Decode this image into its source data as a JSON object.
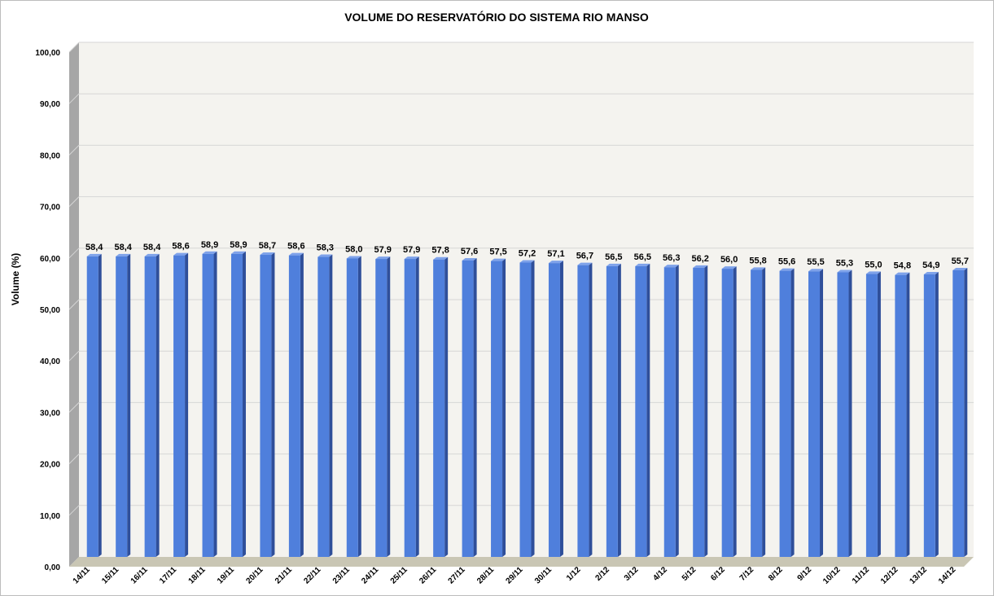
{
  "chart_data": {
    "type": "bar",
    "title": "VOLUME DO RESERVATÓRIO DO SISTEMA RIO MANSO",
    "xlabel": "",
    "ylabel": "Volume (%)",
    "ylim": [
      0,
      100
    ],
    "yticks": [
      "0,00",
      "10,00",
      "20,00",
      "30,00",
      "40,00",
      "50,00",
      "60,00",
      "70,00",
      "80,00",
      "90,00",
      "100,00"
    ],
    "categories": [
      "14/11",
      "15/11",
      "16/11",
      "17/11",
      "18/11",
      "19/11",
      "20/11",
      "21/11",
      "22/11",
      "23/11",
      "24/11",
      "25/11",
      "26/11",
      "27/11",
      "28/11",
      "29/11",
      "30/11",
      "1/12",
      "2/12",
      "3/12",
      "4/12",
      "5/12",
      "6/12",
      "7/12",
      "8/12",
      "9/12",
      "10/12",
      "11/12",
      "12/12",
      "13/12",
      "14/12"
    ],
    "values": [
      58.4,
      58.4,
      58.4,
      58.6,
      58.9,
      58.9,
      58.7,
      58.6,
      58.3,
      58.0,
      57.9,
      57.9,
      57.8,
      57.6,
      57.5,
      57.2,
      57.1,
      56.7,
      56.5,
      56.5,
      56.3,
      56.2,
      56.0,
      55.8,
      55.6,
      55.5,
      55.3,
      55.0,
      54.8,
      54.9,
      55.7
    ],
    "value_labels": [
      "58,4",
      "58,4",
      "58,4",
      "58,6",
      "58,9",
      "58,9",
      "58,7",
      "58,6",
      "58,3",
      "58,0",
      "57,9",
      "57,9",
      "57,8",
      "57,6",
      "57,5",
      "57,2",
      "57,1",
      "56,7",
      "56,5",
      "56,5",
      "56,3",
      "56,2",
      "56,0",
      "55,8",
      "55,6",
      "55,5",
      "55,3",
      "55,0",
      "54,8",
      "54,9",
      "55,7"
    ],
    "grid": true,
    "legend": "none",
    "colors": {
      "bar_front": "#4f7fdc",
      "bar_side": "#2f4f9a",
      "bar_top": "#7ea2ea",
      "plot_bg": "#f4f3ef",
      "wall_side": "#a6a6a6",
      "floor": "#c9c6b4",
      "grid": "#d6d6d6"
    }
  }
}
